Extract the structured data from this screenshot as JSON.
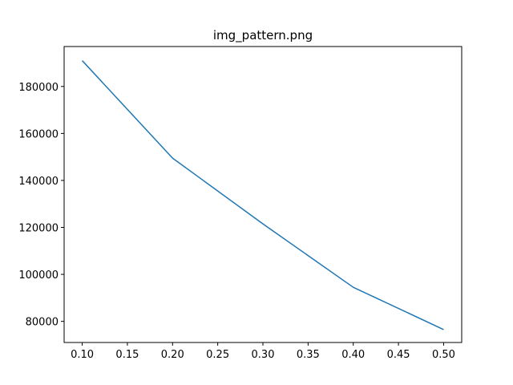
{
  "chart_data": {
    "type": "line",
    "title": "img_pattern.png",
    "xlabel": "",
    "ylabel": "",
    "xlim": [
      0.08,
      0.52
    ],
    "ylim": [
      71000,
      197000
    ],
    "x_ticks": [
      {
        "value": 0.1,
        "label": "0.10"
      },
      {
        "value": 0.15,
        "label": "0.15"
      },
      {
        "value": 0.2,
        "label": "0.20"
      },
      {
        "value": 0.25,
        "label": "0.25"
      },
      {
        "value": 0.3,
        "label": "0.30"
      },
      {
        "value": 0.35,
        "label": "0.35"
      },
      {
        "value": 0.4,
        "label": "0.40"
      },
      {
        "value": 0.45,
        "label": "0.45"
      },
      {
        "value": 0.5,
        "label": "0.50"
      }
    ],
    "y_ticks": [
      {
        "value": 80000,
        "label": "80000"
      },
      {
        "value": 100000,
        "label": "100000"
      },
      {
        "value": 120000,
        "label": "120000"
      },
      {
        "value": 140000,
        "label": "140000"
      },
      {
        "value": 160000,
        "label": "160000"
      },
      {
        "value": 180000,
        "label": "180000"
      }
    ],
    "grid": false,
    "series": [
      {
        "color": "#1f77b4",
        "x": [
          0.1,
          0.2,
          0.3,
          0.4,
          0.5
        ],
        "values": [
          191000,
          149500,
          121500,
          94500,
          76500
        ]
      }
    ]
  }
}
